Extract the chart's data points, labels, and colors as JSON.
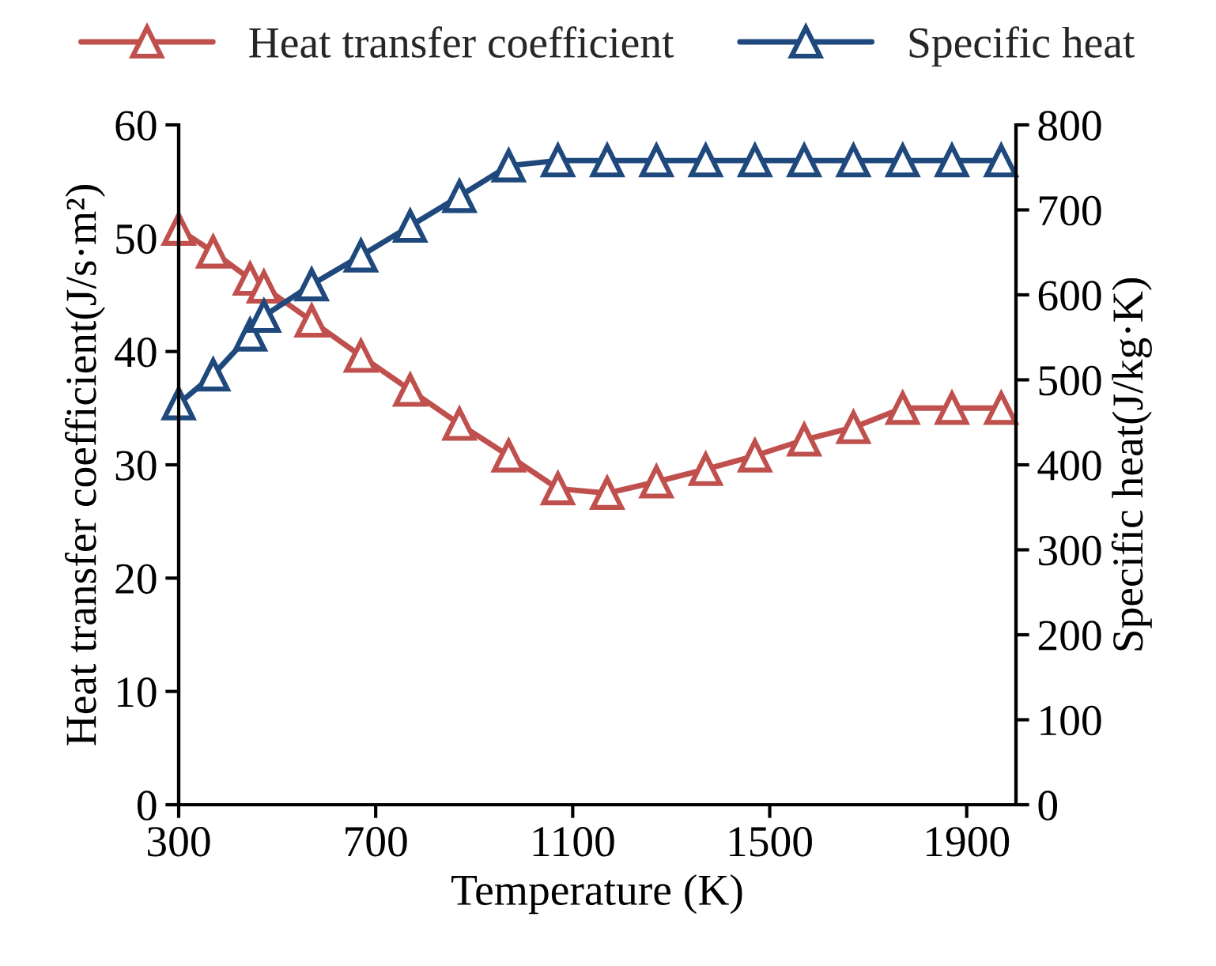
{
  "chart_data": {
    "type": "line",
    "xlabel": "Temperature (K)",
    "ylabel": "Heat transfer coefficient(J/s·m²)",
    "y2label": "Specific heat(J/kg·K)",
    "x": [
      300,
      370,
      445,
      473,
      570,
      670,
      770,
      870,
      970,
      1070,
      1170,
      1270,
      1370,
      1470,
      1570,
      1670,
      1770,
      1870,
      1970
    ],
    "series": [
      {
        "name": "Heat transfer coefficient",
        "color": "#c0504d",
        "values": [
          50.8,
          48.8,
          46.4,
          45.7,
          42.7,
          39.6,
          36.6,
          33.6,
          30.8,
          27.9,
          27.5,
          28.5,
          29.6,
          30.8,
          32.2,
          33.3,
          35.0,
          35.0,
          35.0
        ]
      },
      {
        "name": "Specific heat",
        "color": "#1f497d",
        "axis": "y2",
        "values": [
          472,
          506,
          553,
          575,
          612,
          646,
          681,
          716,
          752,
          758,
          758,
          758,
          758,
          758,
          758,
          758,
          758,
          758,
          758
        ]
      }
    ],
    "xlim": [
      300,
      2000
    ],
    "xticks": [
      300,
      700,
      1100,
      1500,
      1900
    ],
    "ylim": [
      0,
      60
    ],
    "yticks": [
      0,
      10,
      20,
      30,
      40,
      50,
      60
    ],
    "y2lim": [
      0,
      800
    ],
    "y2ticks": [
      0,
      100,
      200,
      300,
      400,
      500,
      600,
      700,
      800
    ],
    "marker": "triangle",
    "line_style": "solid",
    "legend": "top",
    "grid": false
  }
}
